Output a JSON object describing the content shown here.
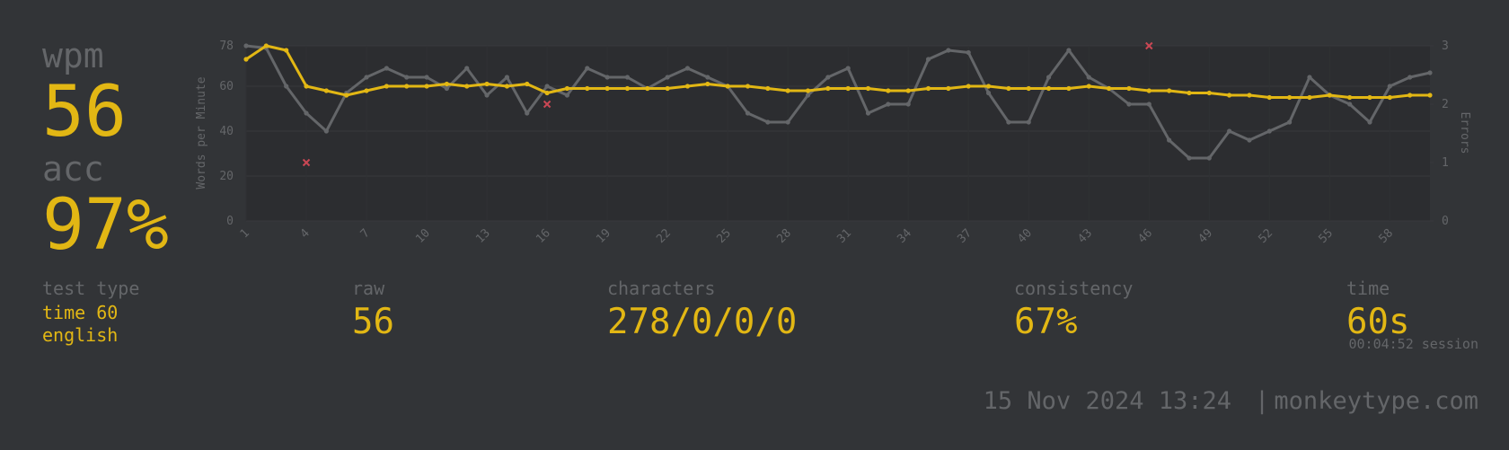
{
  "stats": {
    "wpm": {
      "label": "wpm",
      "value": "56"
    },
    "acc": {
      "label": "acc",
      "value": "97%"
    },
    "test_type": {
      "label": "test type",
      "lines": [
        "time 60",
        "english"
      ]
    },
    "raw": {
      "label": "raw",
      "value": "56"
    },
    "characters": {
      "label": "characters",
      "value": "278/0/0/0"
    },
    "consistency": {
      "label": "consistency",
      "value": "67%"
    },
    "time": {
      "label": "time",
      "value": "60s",
      "note": "00:04:52 session"
    }
  },
  "footer": {
    "date": "15 Nov 2024 13:24",
    "separator": "|",
    "site": "monkeytype.com"
  },
  "chart_data": {
    "type": "line",
    "ylabel": "Words per Minute",
    "y2label": "Errors",
    "x": [
      1,
      2,
      3,
      4,
      5,
      6,
      7,
      8,
      9,
      10,
      11,
      12,
      13,
      14,
      15,
      16,
      17,
      18,
      19,
      20,
      21,
      22,
      23,
      24,
      25,
      26,
      27,
      28,
      29,
      30,
      31,
      32,
      33,
      34,
      35,
      36,
      37,
      38,
      39,
      40,
      41,
      42,
      43,
      44,
      45,
      46,
      47,
      48,
      49,
      50,
      51,
      52,
      53,
      54,
      55,
      56,
      57,
      58,
      59,
      60
    ],
    "xlim": [
      1,
      60
    ],
    "xticks": [
      1,
      4,
      7,
      10,
      13,
      16,
      19,
      22,
      25,
      28,
      31,
      34,
      37,
      40,
      43,
      46,
      49,
      52,
      55,
      58
    ],
    "ylim": [
      0,
      78
    ],
    "yticks": [
      0,
      20,
      40,
      60,
      78
    ],
    "y2lim": [
      0,
      3
    ],
    "y2ticks": [
      0,
      1,
      2,
      3
    ],
    "grid": true,
    "series": [
      {
        "color": "#646669",
        "values": [
          78,
          77,
          60,
          48,
          40,
          57,
          64,
          68,
          64,
          64,
          59,
          68,
          56,
          64,
          48,
          60,
          56,
          68,
          64,
          64,
          59,
          64,
          68,
          64,
          60,
          48,
          44,
          44,
          56,
          64,
          68,
          48,
          52,
          52,
          72,
          76,
          75,
          57,
          44,
          44,
          64,
          76,
          64,
          59,
          52,
          52,
          36,
          28,
          28,
          40,
          36,
          40,
          44,
          64,
          56,
          52,
          44,
          60,
          64,
          66
        ]
      },
      {
        "color": "#e2b714",
        "values": [
          72,
          78,
          76,
          60,
          58,
          56,
          58,
          60,
          60,
          60,
          61,
          60,
          61,
          60,
          61,
          57,
          59,
          59,
          59,
          59,
          59,
          59,
          60,
          61,
          60,
          60,
          59,
          58,
          58,
          59,
          59,
          59,
          58,
          58,
          59,
          59,
          60,
          60,
          59,
          59,
          59,
          59,
          60,
          59,
          59,
          58,
          58,
          57,
          57,
          56,
          56,
          55,
          55,
          55,
          56,
          55,
          55,
          55,
          56,
          56
        ]
      },
      {
        "color": "#ca4754",
        "axis": "y2",
        "marker": "cross",
        "values": [
          null,
          null,
          null,
          1,
          null,
          null,
          null,
          null,
          null,
          null,
          null,
          null,
          null,
          null,
          null,
          2,
          null,
          null,
          null,
          null,
          null,
          null,
          null,
          null,
          null,
          null,
          null,
          null,
          null,
          null,
          null,
          null,
          null,
          null,
          null,
          null,
          null,
          null,
          null,
          null,
          null,
          null,
          null,
          null,
          null,
          3,
          null,
          null,
          null,
          null,
          null,
          null,
          null,
          null,
          null,
          null,
          null,
          null,
          null,
          null
        ]
      }
    ]
  }
}
